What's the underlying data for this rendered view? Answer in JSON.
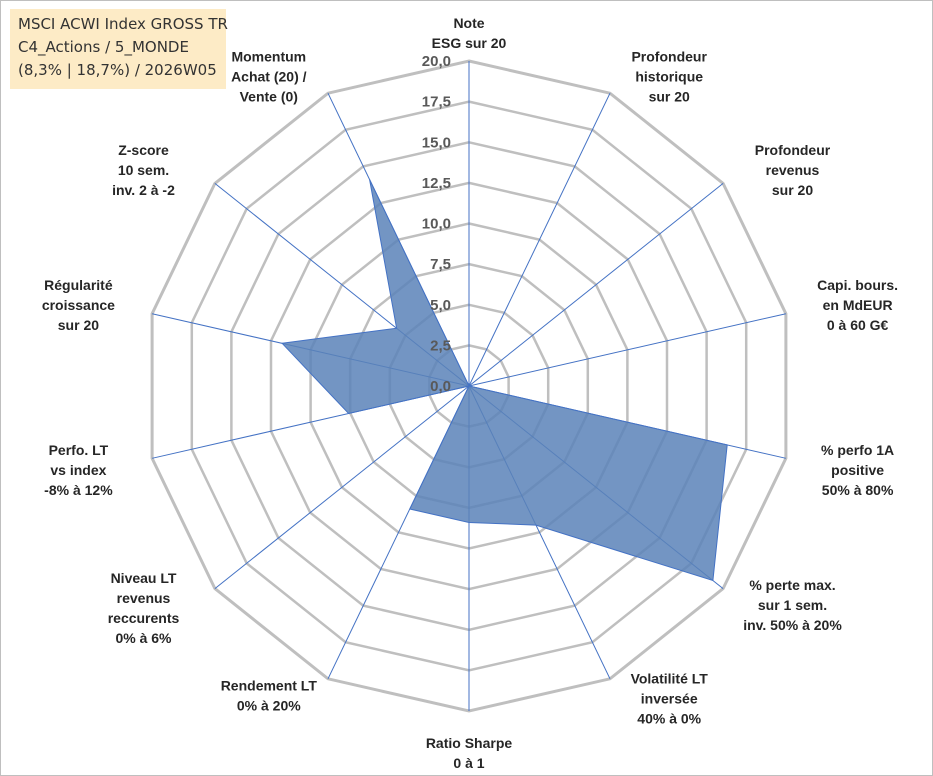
{
  "header": {
    "line1": "MSCI ACWI Index GROSS TR",
    "line2": "C4_Actions / 5_MONDE",
    "line3": "(8,3% | 18,7%) / 2026W05"
  },
  "chart_data": {
    "type": "radar",
    "rmin": 0,
    "rmax": 20,
    "tick_step": 2.5,
    "tick_labels": [
      "0,0",
      "2,5",
      "5,0",
      "7,5",
      "10,0",
      "12,5",
      "15,0",
      "17,5",
      "20,0"
    ],
    "axes": [
      {
        "lines": [
          "Note",
          "ESG sur 20"
        ]
      },
      {
        "lines": [
          "Profondeur",
          "historique",
          "sur 20"
        ]
      },
      {
        "lines": [
          "Profondeur",
          "revenus",
          "sur 20"
        ]
      },
      {
        "lines": [
          "Capi. bours.",
          "en MdEUR",
          "0 à 60 G€"
        ]
      },
      {
        "lines": [
          "% perfo 1A",
          "positive",
          "50% à 80%"
        ]
      },
      {
        "lines": [
          "% perte max.",
          "sur 1 sem.",
          "inv. 50% à 20%"
        ]
      },
      {
        "lines": [
          "Volatilité LT",
          "inversée",
          "40% à 0%"
        ]
      },
      {
        "lines": [
          "Ratio Sharpe",
          "0 à 1"
        ]
      },
      {
        "lines": [
          "Rendement LT",
          "0% à 20%"
        ]
      },
      {
        "lines": [
          "Niveau LT",
          "revenus",
          "reccurents",
          "0% à 6%"
        ]
      },
      {
        "lines": [
          "Perfo. LT",
          "vs index",
          "-8% à 12%"
        ]
      },
      {
        "lines": [
          "Régularité",
          "croissance",
          "sur 20"
        ]
      },
      {
        "lines": [
          "Z-score",
          "10 sem.",
          "inv. 2 à -2"
        ]
      },
      {
        "lines": [
          "Momentum",
          "Achat (20) /",
          "Vente (0)"
        ]
      }
    ],
    "series": [
      {
        "values": [
          0,
          0,
          0,
          0,
          16.3,
          19.2,
          9.5,
          8.4,
          8.4,
          0,
          7.6,
          11.8,
          5.7,
          14.1
        ]
      }
    ],
    "colors": {
      "fill": "#5b83b8",
      "stroke": "#4472c4",
      "grid": "#bfbfbf",
      "spoke": "#4472c4",
      "label": "#262626",
      "tick": "#595959"
    }
  }
}
